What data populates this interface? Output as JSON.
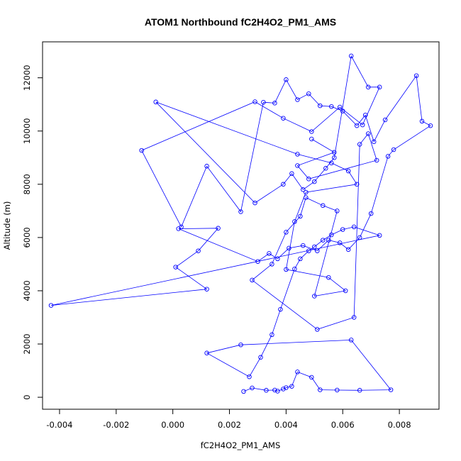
{
  "chart_data": {
    "type": "line",
    "title": "ATOM1 Northbound fC2H4O2_PM1_AMS",
    "xlabel": "fC2H4O2_PM1_AMS",
    "ylabel": "Altitude (m)",
    "xlim": [
      -0.0046,
      0.0094
    ],
    "ylim": [
      -450,
      13350
    ],
    "x_ticks": [
      -0.004,
      -0.002,
      0.0,
      0.002,
      0.004,
      0.006,
      0.008
    ],
    "x_tick_labels": [
      "-0.004",
      "-0.002",
      "0.000",
      "0.002",
      "0.004",
      "0.006",
      "0.008"
    ],
    "y_ticks": [
      0,
      2000,
      4000,
      6000,
      8000,
      10000,
      12000
    ],
    "y_tick_labels": [
      "0",
      "2000",
      "4000",
      "6000",
      "8000",
      "10000",
      "12000"
    ],
    "grid": false,
    "series_color": "#0000ff",
    "marker": "open-circle",
    "x": [
      0.0025,
      0.0028,
      0.0033,
      0.0036,
      0.0037,
      0.0039,
      0.004,
      0.0042,
      0.0044,
      0.0049,
      0.0052,
      0.0058,
      0.0066,
      0.0077,
      0.0063,
      0.0024,
      0.0012,
      0.0027,
      0.0031,
      0.0035,
      0.0038,
      0.0043,
      0.0045,
      0.0048,
      0.005,
      0.0053,
      0.0056,
      0.006,
      0.0064,
      0.0073,
      -0.0043,
      0.0012,
      0.0001,
      0.0009,
      0.0016,
      0.0002,
      0.003,
      0.0034,
      0.0037,
      0.0041,
      0.0046,
      0.0051,
      0.0055,
      0.0059,
      0.0062,
      0.0066,
      0.007,
      0.0076,
      0.0078,
      0.0091,
      0.0088,
      0.0086,
      0.0075,
      0.0071,
      0.0068,
      0.0065,
      0.006,
      0.0056,
      0.0052,
      0.0048,
      0.0044,
      0.004,
      0.0036,
      0.0032,
      0.0024,
      0.0012,
      0.0003,
      -0.0011,
      0.0029,
      0.0039,
      0.0049,
      0.0059,
      0.0067,
      0.0073,
      0.0069,
      0.0063,
      0.0057,
      0.0054,
      0.005,
      0.0046,
      0.0042,
      0.0039,
      0.0029,
      -0.0006,
      0.0044,
      0.0056,
      0.0062,
      0.0065,
      0.0047,
      0.0043,
      0.004,
      0.0055,
      0.0061,
      0.005,
      0.0058,
      0.0053,
      0.0047,
      0.0045,
      0.004,
      0.0035,
      0.0028,
      0.0051,
      0.0064,
      0.0066,
      0.0069,
      0.0072,
      0.0048,
      0.0044,
      0.0057,
      0.0049
    ],
    "y": [
      220,
      350,
      260,
      270,
      230,
      310,
      360,
      410,
      950,
      750,
      280,
      270,
      260,
      280,
      2150,
      1970,
      1660,
      770,
      1500,
      2350,
      3300,
      4820,
      5200,
      5500,
      5650,
      5900,
      6100,
      6300,
      6400,
      6080,
      3450,
      4060,
      4890,
      5500,
      6350,
      6330,
      5100,
      5400,
      5200,
      5600,
      5700,
      5500,
      5900,
      5800,
      5550,
      6000,
      6900,
      9050,
      9300,
      10200,
      10370,
      12080,
      10420,
      9600,
      10600,
      10200,
      10750,
      10920,
      10950,
      11400,
      11180,
      11930,
      11050,
      11080,
      6970,
      8680,
      6400,
      9270,
      11100,
      10480,
      9980,
      10900,
      10230,
      11650,
      11650,
      12820,
      9000,
      8600,
      8100,
      7800,
      8400,
      8000,
      7300,
      11090,
      9130,
      8800,
      8500,
      8000,
      7700,
      6600,
      4800,
      4500,
      4000,
      3800,
      7000,
      7200,
      7500,
      6800,
      6200,
      5000,
      4400,
      2550,
      3000,
      9500,
      9900,
      8900,
      8200,
      8700,
      9200,
      9700
    ]
  }
}
